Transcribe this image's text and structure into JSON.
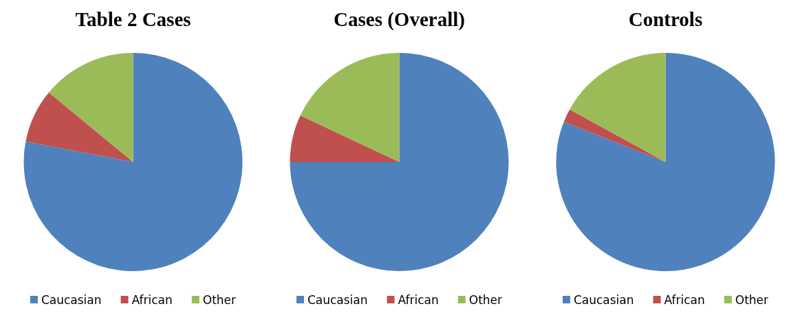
{
  "chart_data": [
    {
      "type": "pie",
      "title": "Table 2 Cases",
      "categories": [
        "Caucasian",
        "African",
        "Other"
      ],
      "values": [
        78,
        8,
        14
      ],
      "colors": [
        "#4f81bd",
        "#c0504d",
        "#9bbb59"
      ],
      "legend": "bottom"
    },
    {
      "type": "pie",
      "title": "Cases (Overall)",
      "categories": [
        "Caucasian",
        "African",
        "Other"
      ],
      "values": [
        75,
        7,
        18
      ],
      "colors": [
        "#4f81bd",
        "#c0504d",
        "#9bbb59"
      ],
      "legend": "bottom"
    },
    {
      "type": "pie",
      "title": "Controls",
      "categories": [
        "Caucasian",
        "African",
        "Other"
      ],
      "values": [
        81,
        2,
        17
      ],
      "colors": [
        "#4f81bd",
        "#c0504d",
        "#9bbb59"
      ],
      "legend": "bottom"
    }
  ]
}
